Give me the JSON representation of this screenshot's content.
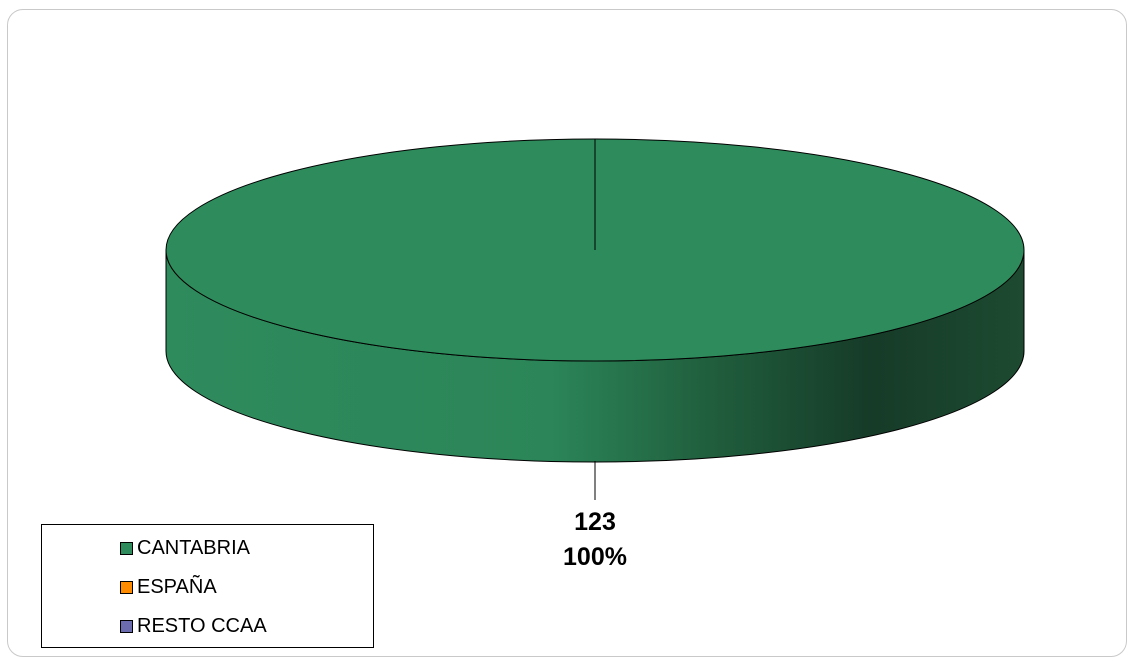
{
  "chart_data": {
    "type": "pie",
    "style": "3d",
    "title": "",
    "categories": [
      "CANTABRIA",
      "ESPAÑA",
      "RESTO CCAA"
    ],
    "values": [
      123,
      0,
      0
    ],
    "percentages": [
      "100%",
      "0%",
      "0%"
    ],
    "colors": [
      "#2e8b5c",
      "#ff8c00",
      "#6b6bb0"
    ],
    "data_labels": [
      {
        "value": "123",
        "percent": "100%"
      }
    ],
    "legend": {
      "placement": "bottom-left",
      "entries": [
        {
          "label": "CANTABRIA",
          "color": "#2e8b5c"
        },
        {
          "label": "ESPAÑA",
          "color": "#ff8c00"
        },
        {
          "label": "RESTO CCAA",
          "color": "#6b6bb0"
        }
      ]
    }
  }
}
